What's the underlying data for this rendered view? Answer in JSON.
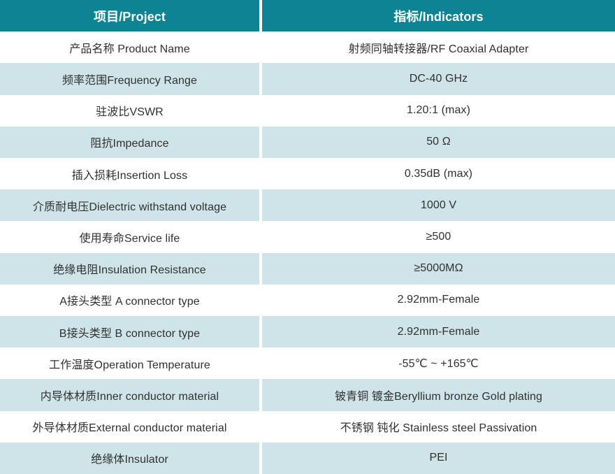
{
  "table": {
    "headers": {
      "project": "项目/Project",
      "indicators": "指标/Indicators"
    },
    "rows": [
      {
        "project": "产品名称 Product Name",
        "indicator": "射频同轴转接器/RF Coaxial Adapter"
      },
      {
        "project": "频率范围Frequency Range",
        "indicator": "DC-40 GHz"
      },
      {
        "project": "驻波比VSWR",
        "indicator": "1.20:1 (max)"
      },
      {
        "project": "阻抗Impedance",
        "indicator": "50 Ω"
      },
      {
        "project": "插入损耗Insertion Loss",
        "indicator": "0.35dB (max)"
      },
      {
        "project": "介质耐电压Dielectric withstand voltage",
        "indicator": "1000 V"
      },
      {
        "project": "使用寿命Service life",
        "indicator": "≥500"
      },
      {
        "project": "绝缘电阻Insulation Resistance",
        "indicator": "≥5000MΩ"
      },
      {
        "project": "A接头类型 A connector type",
        "indicator": "2.92mm-Female"
      },
      {
        "project": "B接头类型 B connector type",
        "indicator": "2.92mm-Female"
      },
      {
        "project": "工作温度Operation Temperature",
        "indicator": "-55℃ ~ +165℃"
      },
      {
        "project": "内导体材质Inner conductor material",
        "indicator": "铍青铜 镀金Beryllium bronze Gold plating"
      },
      {
        "project": "外导体材质External conductor material",
        "indicator": "不锈钢 钝化 Stainless steel Passivation"
      },
      {
        "project": "绝缘体Insulator",
        "indicator": "PEI"
      }
    ],
    "colors": {
      "header_bg": "#0d8492",
      "row_alt_bg": "#cee4e9",
      "header_text": "#ffffff",
      "body_text": "#303030"
    }
  }
}
